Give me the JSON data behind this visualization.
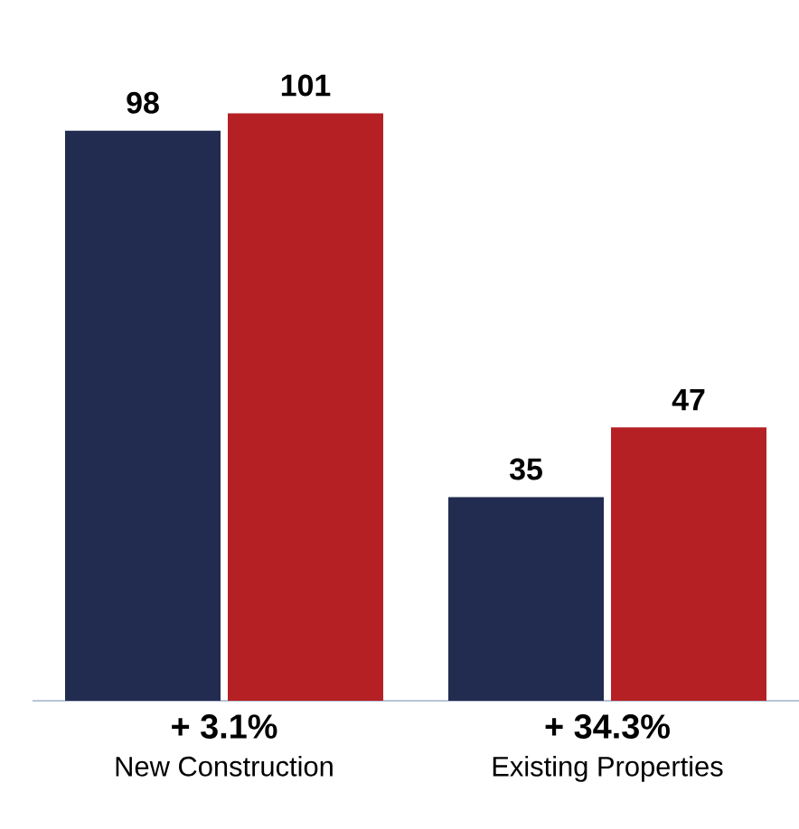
{
  "chart_data": {
    "type": "bar",
    "categories": [
      "New Construction",
      "Existing Properties"
    ],
    "series": [
      {
        "color": "#222b50",
        "values": [
          98,
          35
        ]
      },
      {
        "color": "#b52025",
        "values": [
          101,
          47
        ]
      }
    ],
    "data_labels": true,
    "annotations": [
      "+ 3.1%",
      "+ 34.3%"
    ]
  }
}
